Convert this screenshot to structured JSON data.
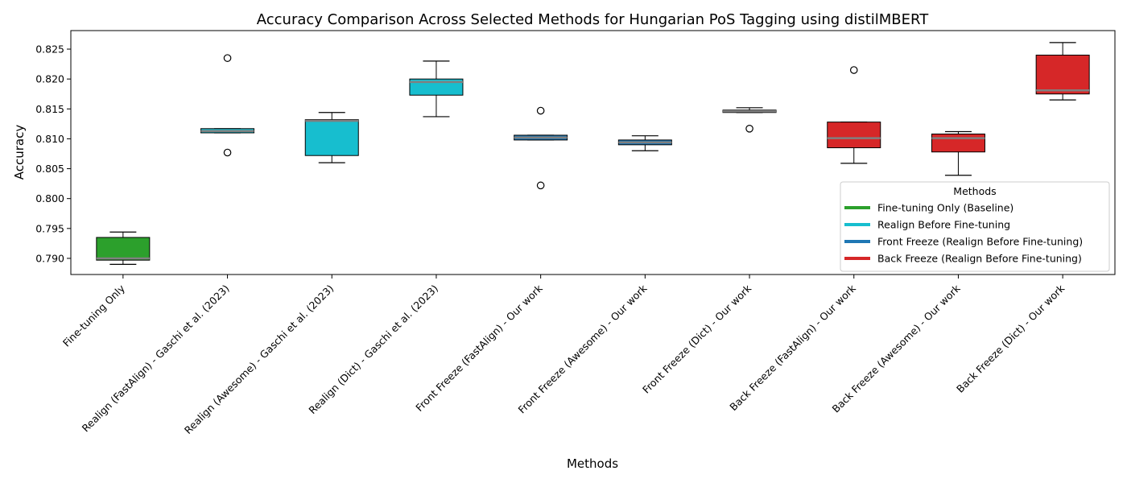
{
  "chart_data": {
    "type": "box",
    "title": "Accuracy Comparison Across Selected Methods for Hungarian PoS Tagging using distilMBERT",
    "xlabel": "Methods",
    "ylabel": "Accuracy",
    "ylim": [
      0.7873,
      0.8281
    ],
    "yticks": [
      0.79,
      0.795,
      0.8,
      0.805,
      0.81,
      0.815,
      0.82,
      0.825
    ],
    "ytick_labels": [
      "0.790",
      "0.795",
      "0.800",
      "0.805",
      "0.810",
      "0.815",
      "0.820",
      "0.825"
    ],
    "grid": false,
    "categories": [
      "Fine-tuning Only",
      "Realign (FastAlign) - Gaschi et al. (2023)",
      "Realign (Awesome) - Gaschi et al. (2023)",
      "Realign (Dict) - Gaschi et al. (2023)",
      "Front Freeze (FastAlign) - Our work",
      "Front Freeze (Awesome) - Our work",
      "Front Freeze (Dict) - Our work",
      "Back Freeze (FastAlign) - Our work",
      "Back Freeze (Awesome) - Our work",
      "Back Freeze (Dict) - Our work"
    ],
    "boxes": [
      {
        "whislo": 0.789,
        "q1": 0.7897,
        "med": 0.79,
        "q3": 0.7935,
        "whishi": 0.7944,
        "fliers": [],
        "group": 0
      },
      {
        "whislo": 0.811,
        "q1": 0.811,
        "med": 0.8113,
        "q3": 0.8117,
        "whishi": 0.8117,
        "fliers": [
          0.8235,
          0.8077
        ],
        "group": 1
      },
      {
        "whislo": 0.806,
        "q1": 0.8072,
        "med": 0.813,
        "q3": 0.8132,
        "whishi": 0.8144,
        "fliers": [],
        "group": 1
      },
      {
        "whislo": 0.8137,
        "q1": 0.8173,
        "med": 0.8195,
        "q3": 0.82,
        "whishi": 0.823,
        "fliers": [],
        "group": 1
      },
      {
        "whislo": 0.8098,
        "q1": 0.8098,
        "med": 0.8102,
        "q3": 0.8106,
        "whishi": 0.8106,
        "fliers": [
          0.8147,
          0.8022
        ],
        "group": 2
      },
      {
        "whislo": 0.808,
        "q1": 0.809,
        "med": 0.8094,
        "q3": 0.8098,
        "whishi": 0.8105,
        "fliers": [],
        "group": 2
      },
      {
        "whislo": 0.8144,
        "q1": 0.8144,
        "med": 0.8146,
        "q3": 0.8148,
        "whishi": 0.8152,
        "fliers": [
          0.8117
        ],
        "group": 2
      },
      {
        "whislo": 0.8059,
        "q1": 0.8085,
        "med": 0.8101,
        "q3": 0.8128,
        "whishi": 0.8128,
        "fliers": [
          0.8215
        ],
        "group": 3
      },
      {
        "whislo": 0.8039,
        "q1": 0.8078,
        "med": 0.8101,
        "q3": 0.8108,
        "whishi": 0.8112,
        "fliers": [],
        "group": 3
      },
      {
        "whislo": 0.8165,
        "q1": 0.8175,
        "med": 0.8181,
        "q3": 0.824,
        "whishi": 0.8261,
        "fliers": [],
        "group": 3
      }
    ],
    "legend": {
      "title": "Methods",
      "placement": "lower-right",
      "entries": [
        {
          "label": "Fine-tuning Only (Baseline)",
          "color": "#2ca02c"
        },
        {
          "label": "Realign Before Fine-tuning",
          "color": "#17becf"
        },
        {
          "label": "Front Freeze (Realign Before Fine-tuning)",
          "color": "#1f77b4"
        },
        {
          "label": "Back Freeze (Realign Before Fine-tuning)",
          "color": "#d62728"
        }
      ]
    },
    "median_color": "#808080"
  }
}
